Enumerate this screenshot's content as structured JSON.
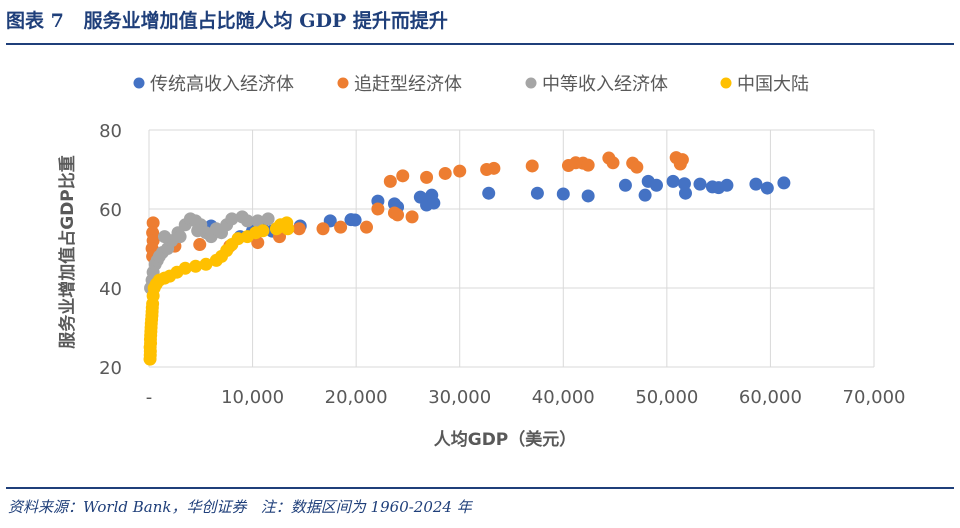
{
  "title": "图表 7   服务业增加值占比随人均 GDP 提升而提升",
  "source": "资料来源：World Bank，华创证券   注：数据区间为 1960-2024 年",
  "chart_data": {
    "type": "scatter",
    "title": "",
    "xlabel": "人均GDP（美元）",
    "ylabel": "服务业增加值占GDP比重",
    "xlim": [
      0,
      70000
    ],
    "ylim": [
      20,
      80
    ],
    "x_ticks": [
      "-",
      "10,000",
      "20,000",
      "30,000",
      "40,000",
      "50,000",
      "60,000",
      "70,000"
    ],
    "y_ticks": [
      "20",
      "40",
      "60",
      "80"
    ],
    "grid": true,
    "legend": "top",
    "series": [
      {
        "name": "传统高收入经济体",
        "color": "#4472C4",
        "points": [
          [
            6000,
            55.7
          ],
          [
            8800,
            53
          ],
          [
            10900,
            56
          ],
          [
            11900,
            54.4
          ],
          [
            10000,
            54.5
          ],
          [
            14600,
            55.7
          ],
          [
            17500,
            57
          ],
          [
            19900,
            57.2
          ],
          [
            19500,
            57.3
          ],
          [
            22100,
            62
          ],
          [
            23700,
            61.3
          ],
          [
            24000,
            60.5
          ],
          [
            26200,
            63
          ],
          [
            26800,
            61
          ],
          [
            27300,
            63.5
          ],
          [
            27500,
            61.5
          ],
          [
            32800,
            64
          ],
          [
            37500,
            64
          ],
          [
            40000,
            63.8
          ],
          [
            42400,
            63.3
          ],
          [
            46000,
            66
          ],
          [
            47900,
            63.5
          ],
          [
            48200,
            67
          ],
          [
            49000,
            66
          ],
          [
            50600,
            67
          ],
          [
            51800,
            64
          ],
          [
            51700,
            66.4
          ],
          [
            53200,
            66.3
          ],
          [
            54400,
            65.6
          ],
          [
            55000,
            65.4
          ],
          [
            55800,
            66
          ],
          [
            58600,
            66.3
          ],
          [
            59700,
            65.3
          ],
          [
            61300,
            66.6
          ]
        ]
      },
      {
        "name": "追赶型经济体",
        "color": "#ED7D31",
        "points": [
          [
            400,
            56.5
          ],
          [
            350,
            54
          ],
          [
            400,
            52
          ],
          [
            300,
            50
          ],
          [
            350,
            48
          ],
          [
            2500,
            50.6
          ],
          [
            4900,
            51
          ],
          [
            7800,
            50.6
          ],
          [
            10500,
            51.5
          ],
          [
            12600,
            53
          ],
          [
            14500,
            55
          ],
          [
            16800,
            55
          ],
          [
            18500,
            55.4
          ],
          [
            21000,
            55.4
          ],
          [
            22100,
            60
          ],
          [
            23700,
            59
          ],
          [
            25400,
            58
          ],
          [
            24000,
            58.5
          ],
          [
            23300,
            67
          ],
          [
            24500,
            68.4
          ],
          [
            26800,
            68
          ],
          [
            28600,
            69
          ],
          [
            30000,
            69.6
          ],
          [
            32600,
            70
          ],
          [
            33300,
            70.3
          ],
          [
            37000,
            70.9
          ],
          [
            40500,
            71
          ],
          [
            41200,
            71.7
          ],
          [
            41900,
            71.6
          ],
          [
            42400,
            71.1
          ],
          [
            44400,
            72.9
          ],
          [
            44800,
            71.7
          ],
          [
            46700,
            71.6
          ],
          [
            47100,
            70.6
          ],
          [
            50900,
            73
          ],
          [
            51500,
            72.5
          ],
          [
            51300,
            71.4
          ]
        ]
      },
      {
        "name": "中等收入经济体",
        "color": "#A5A5A5",
        "points": [
          [
            150,
            40
          ],
          [
            300,
            42
          ],
          [
            400,
            44
          ],
          [
            600,
            46
          ],
          [
            800,
            47
          ],
          [
            1000,
            48
          ],
          [
            1300,
            49
          ],
          [
            1800,
            50
          ],
          [
            2200,
            52
          ],
          [
            2800,
            54
          ],
          [
            3500,
            56
          ],
          [
            4000,
            57.5
          ],
          [
            4500,
            57
          ],
          [
            5000,
            56
          ],
          [
            5500,
            54
          ],
          [
            6000,
            53
          ],
          [
            7000,
            54
          ],
          [
            7500,
            56
          ],
          [
            8000,
            57.5
          ],
          [
            9000,
            58
          ],
          [
            9500,
            57
          ],
          [
            10500,
            57
          ],
          [
            11500,
            57.5
          ],
          [
            3000,
            53
          ],
          [
            1500,
            53
          ],
          [
            4700,
            54.5
          ],
          [
            6500,
            55
          ]
        ]
      },
      {
        "name": "中国大陆",
        "color": "#FFC000",
        "points": [
          [
            100,
            22
          ],
          [
            120,
            23
          ],
          [
            130,
            24
          ],
          [
            110,
            25
          ],
          [
            150,
            26
          ],
          [
            140,
            27
          ],
          [
            160,
            28
          ],
          [
            180,
            29
          ],
          [
            200,
            30
          ],
          [
            220,
            31
          ],
          [
            250,
            32
          ],
          [
            280,
            33
          ],
          [
            300,
            34
          ],
          [
            320,
            35
          ],
          [
            350,
            36
          ],
          [
            400,
            38
          ],
          [
            500,
            40
          ],
          [
            700,
            41
          ],
          [
            1000,
            42
          ],
          [
            1500,
            42.5
          ],
          [
            2000,
            43
          ],
          [
            2700,
            44
          ],
          [
            3500,
            45
          ],
          [
            4500,
            45.5
          ],
          [
            5500,
            46
          ],
          [
            6500,
            47
          ],
          [
            7000,
            48
          ],
          [
            7500,
            49.5
          ],
          [
            8000,
            51
          ],
          [
            8600,
            52.5
          ],
          [
            9500,
            53
          ],
          [
            10300,
            54
          ],
          [
            11000,
            54.5
          ],
          [
            12300,
            55
          ],
          [
            12700,
            56
          ],
          [
            13300,
            56.5
          ],
          [
            13400,
            55
          ],
          [
            12600,
            55.5
          ]
        ]
      }
    ]
  }
}
